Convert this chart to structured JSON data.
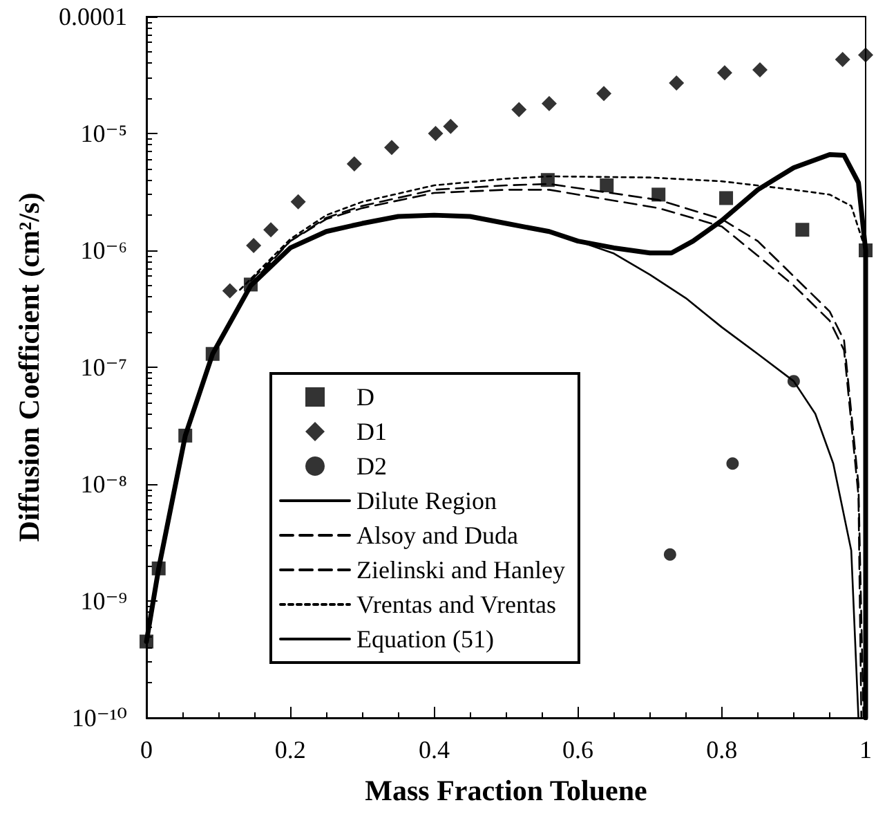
{
  "chart_data": {
    "type": "line",
    "xlabel": "Mass Fraction Toluene",
    "ylabel": "Diffusion Coefficient (cm²/s)",
    "log": "y",
    "grid": false,
    "legend": "bottom left",
    "xlim": [
      0,
      1
    ],
    "xticks": [
      0,
      0.2,
      0.4,
      0.6,
      0.8,
      1
    ],
    "ylim": [
      1e-10,
      0.0001
    ],
    "yticks": [
      {
        "value": 1e-10,
        "label": "10⁻¹⁰"
      },
      {
        "value": 1e-09,
        "label": "10⁻⁹"
      },
      {
        "value": 1e-08,
        "label": "10⁻⁸"
      },
      {
        "value": 1e-07,
        "label": "10⁻⁷"
      },
      {
        "value": 1e-06,
        "label": "10⁻⁶"
      },
      {
        "value": 1e-05,
        "label": "10⁻⁵"
      },
      0.0001
    ],
    "series": [
      {
        "name": "D",
        "type": "scatter",
        "marker": "square",
        "color": "#000000",
        "x": [
          0,
          0.017,
          0.054,
          0.092,
          0.145,
          0.558,
          0.64,
          0.712,
          0.806,
          0.912,
          1.0
        ],
        "values": [
          4.5e-10,
          1.9e-09,
          2.6e-08,
          1.3e-07,
          5.1e-07,
          4e-06,
          3.6e-06,
          3e-06,
          2.8e-06,
          1.5e-06,
          1e-06
        ]
      },
      {
        "name": "D1",
        "type": "scatter",
        "marker": "diamond",
        "color": "#000000",
        "x": [
          0.116,
          0.149,
          0.173,
          0.211,
          0.289,
          0.341,
          0.402,
          0.423,
          0.518,
          0.56,
          0.636,
          0.737,
          0.804,
          0.853,
          0.968,
          1.0
        ],
        "values": [
          4.5e-07,
          1.1e-06,
          1.5e-06,
          2.6e-06,
          5.5e-06,
          7.6e-06,
          1e-05,
          1.15e-05,
          1.6e-05,
          1.8e-05,
          2.2e-05,
          2.7e-05,
          3.3e-05,
          3.5e-05,
          4.3e-05,
          4.7e-05
        ]
      },
      {
        "name": "D2",
        "type": "scatter",
        "marker": "circle",
        "color": "#000000",
        "x": [
          0.728,
          0.815,
          0.9
        ],
        "values": [
          2.5e-09,
          1.5e-08,
          7.6e-08
        ]
      },
      {
        "name": "Dilute Region",
        "marker": "none",
        "line_style": "solid",
        "color": "#000000",
        "x": [
          0.5,
          0.56,
          0.6,
          0.65,
          0.7,
          0.75,
          0.8,
          0.85,
          0.9,
          0.93,
          0.955,
          0.98,
          0.99
        ],
        "values": [
          1.7e-06,
          1.45e-06,
          1.2e-06,
          9.4e-07,
          6.2e-07,
          3.9e-07,
          2.2e-07,
          1.3e-07,
          7.6e-08,
          4e-08,
          1.5e-08,
          2.7e-09,
          1e-10
        ]
      },
      {
        "name": "Alsoy and Duda",
        "marker": "none",
        "line_style": "dashed",
        "color": "#000000",
        "x": [
          0.145,
          0.2,
          0.25,
          0.3,
          0.4,
          0.5,
          0.56,
          0.712,
          0.8,
          0.85,
          0.9,
          0.95,
          0.97,
          0.99,
          0.997
        ],
        "values": [
          5.5e-07,
          1.2e-06,
          1.9e-06,
          2.4e-06,
          3.3e-06,
          3.6e-06,
          3.7e-06,
          2.7e-06,
          1.85e-06,
          1.2e-06,
          6e-07,
          3e-07,
          1.7e-07,
          1e-08,
          1e-10
        ]
      },
      {
        "name": "Zielinski and Hanley",
        "marker": "none",
        "line_style": "dashed",
        "color": "#000000",
        "x": [
          0.16,
          0.2,
          0.25,
          0.3,
          0.4,
          0.5,
          0.56,
          0.712,
          0.8,
          0.85,
          0.9,
          0.95,
          0.97,
          0.99,
          0.994
        ],
        "values": [
          6.5e-07,
          1.2e-06,
          1.85e-06,
          2.3e-06,
          3.1e-06,
          3.3e-06,
          3.3e-06,
          2.3e-06,
          1.6e-06,
          9e-07,
          5e-07,
          2.5e-07,
          1.4e-07,
          8e-09,
          1e-10
        ]
      },
      {
        "name": "Vrentas and Vrentas",
        "marker": "none",
        "line_style": "dotted",
        "color": "#000000",
        "x": [
          0.13,
          0.2,
          0.25,
          0.3,
          0.4,
          0.5,
          0.56,
          0.7,
          0.8,
          0.9,
          0.95,
          0.98,
          1.0
        ],
        "values": [
          4.6e-07,
          1.25e-06,
          2e-06,
          2.6e-06,
          3.6e-06,
          4.1e-06,
          4.3e-06,
          4.2e-06,
          3.9e-06,
          3.3e-06,
          3e-06,
          2.4e-06,
          1e-06
        ]
      },
      {
        "name": "Equation (51)",
        "marker": "none",
        "line_style": "solid",
        "color": "#000000",
        "x": [
          0,
          0.017,
          0.054,
          0.092,
          0.145,
          0.2,
          0.25,
          0.3,
          0.35,
          0.4,
          0.45,
          0.5,
          0.56,
          0.6,
          0.65,
          0.7,
          0.73,
          0.76,
          0.8,
          0.85,
          0.9,
          0.95,
          0.97,
          0.99,
          1.0,
          1.0
        ],
        "values": [
          4.5e-10,
          1.9e-09,
          2.6e-08,
          1.3e-07,
          5e-07,
          1.05e-06,
          1.45e-06,
          1.7e-06,
          1.95e-06,
          2e-06,
          1.95e-06,
          1.7e-06,
          1.45e-06,
          1.2e-06,
          1.05e-06,
          9.5e-07,
          9.5e-07,
          1.2e-06,
          1.8e-06,
          3.3e-06,
          5.1e-06,
          6.6e-06,
          6.5e-06,
          3.8e-06,
          1e-06,
          1e-10
        ]
      }
    ]
  }
}
